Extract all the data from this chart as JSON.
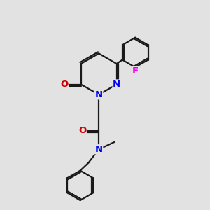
{
  "bg_color": "#e2e2e2",
  "bond_color": "#1a1a1a",
  "N_color": "#0000ee",
  "O_color": "#cc0000",
  "F_color": "#ee00ee",
  "line_width": 1.6,
  "font_size": 9.5,
  "fig_size": [
    3.0,
    3.0
  ],
  "dpi": 100,
  "xlim": [
    0,
    10
  ],
  "ylim": [
    0,
    10
  ]
}
